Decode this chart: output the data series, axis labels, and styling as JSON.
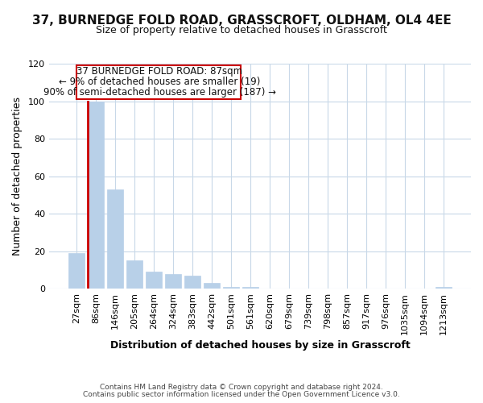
{
  "title_line1": "37, BURNEDGE FOLD ROAD, GRASSCROFT, OLDHAM, OL4 4EE",
  "title_line2": "Size of property relative to detached houses in Grasscroft",
  "xlabel": "Distribution of detached houses by size in Grasscroft",
  "ylabel": "Number of detached properties",
  "bin_labels": [
    "27sqm",
    "86sqm",
    "146sqm",
    "205sqm",
    "264sqm",
    "324sqm",
    "383sqm",
    "442sqm",
    "501sqm",
    "561sqm",
    "620sqm",
    "679sqm",
    "739sqm",
    "798sqm",
    "857sqm",
    "917sqm",
    "976sqm",
    "1035sqm",
    "1094sqm",
    "1213sqm"
  ],
  "bar_heights": [
    19,
    100,
    53,
    15,
    9,
    8,
    7,
    3,
    1,
    1,
    0,
    0,
    0,
    0,
    0,
    0,
    0,
    0,
    0,
    1
  ],
  "bar_color": "#b8d0e8",
  "highlight_bar_index": 1,
  "highlight_bar_edge_color": "#cc0000",
  "normal_bar_edge_color": "#b8d0e8",
  "annotation_text_line1": "37 BURNEDGE FOLD ROAD: 87sqm",
  "annotation_text_line2": "← 9% of detached houses are smaller (19)",
  "annotation_text_line3": "90% of semi-detached houses are larger (187) →",
  "annotation_box_color": "#cc0000",
  "ylim": [
    0,
    120
  ],
  "yticks": [
    0,
    20,
    40,
    60,
    80,
    100,
    120
  ],
  "footer_line1": "Contains HM Land Registry data © Crown copyright and database right 2024.",
  "footer_line2": "Contains public sector information licensed under the Open Government Licence v3.0.",
  "background_color": "#ffffff",
  "grid_color": "#c8d8e8",
  "title_fontsize": 11,
  "subtitle_fontsize": 9,
  "axis_label_fontsize": 9,
  "tick_fontsize": 8,
  "annotation_fontsize": 8.5,
  "footer_fontsize": 6.5
}
